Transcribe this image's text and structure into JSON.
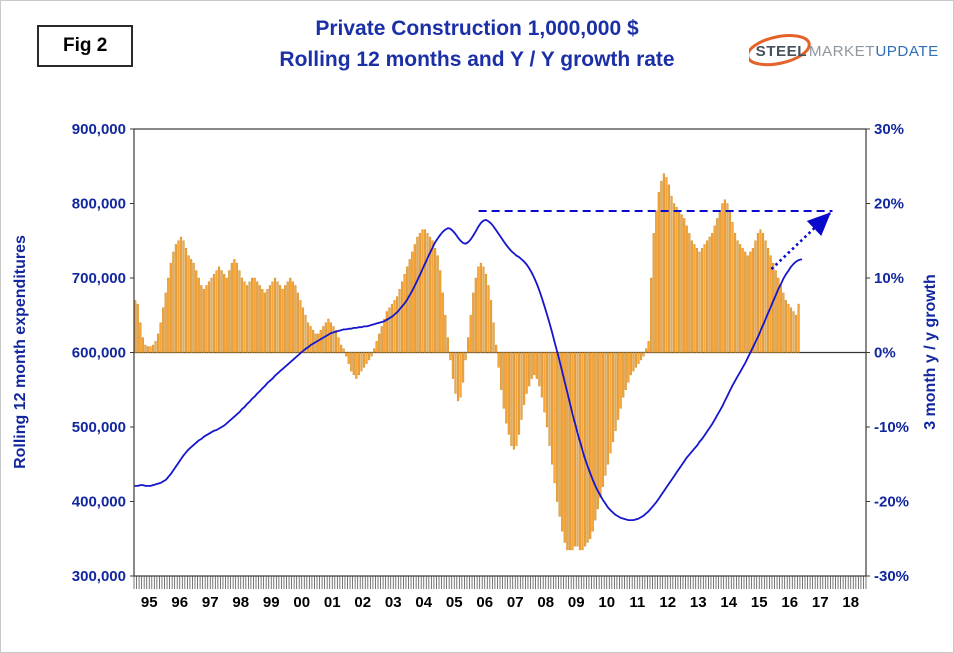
{
  "figure_label": "Fig 2",
  "logo": {
    "steel": "STEEL",
    "market": "MARKET",
    "update": "UPDATE"
  },
  "colors": {
    "title": "#1B2FA6",
    "axis_text": "#12279E",
    "bar_fill": "#F6A63C",
    "bar_stroke": "#C9861F",
    "line": "#1616CF",
    "annotation": "#0A0ACC",
    "plot_border": "#3A3A3A",
    "year_text": "#000000",
    "logo_steel": "#46515C",
    "logo_market": "#8D979F",
    "logo_update": "#2F6FB5",
    "logo_swoosh": "#E4632B"
  },
  "chart_data": {
    "type": "combo (bar + line)",
    "title": "Private Construction 1,000,000 $",
    "subtitle": "Rolling 12 months and Y / Y growth rate",
    "grid": "none",
    "legend": "none",
    "x_axis": {
      "start_year": 1995,
      "months_per_year": 12,
      "years": [
        "95",
        "96",
        "97",
        "98",
        "99",
        "00",
        "01",
        "02",
        "03",
        "04",
        "05",
        "06",
        "07",
        "08",
        "09",
        "10",
        "11",
        "12",
        "13",
        "14",
        "15",
        "16",
        "17",
        "18"
      ]
    },
    "left_axis": {
      "title": "Rolling 12 month expenditures",
      "min": 300000,
      "max": 900000,
      "tick_labels": [
        "900,000",
        "800,000",
        "700,000",
        "600,000",
        "500,000",
        "400,000",
        "300,000"
      ]
    },
    "right_axis": {
      "title": "3 month y / y growth",
      "min": -30,
      "max": 30,
      "tick_labels": [
        "30%",
        "20%",
        "10%",
        "0%",
        "-10%",
        "-20%",
        "-30%"
      ]
    },
    "bar_series": {
      "name": "3 month y/y growth (%, right axis)",
      "start": "1995-01",
      "monthly_values_pct": [
        7,
        6.5,
        4,
        2,
        1,
        0.8,
        0.8,
        1,
        1.5,
        2.5,
        4,
        6,
        8,
        10,
        12,
        13.5,
        14.5,
        15,
        15.5,
        15,
        14,
        13,
        12.5,
        12,
        11,
        10,
        9,
        8.5,
        9,
        9.5,
        10,
        10.5,
        11,
        11.5,
        11,
        10.5,
        10,
        11,
        12,
        12.5,
        12,
        11,
        10,
        9.5,
        9,
        9.5,
        10,
        10,
        9.5,
        9,
        8.5,
        8,
        8.5,
        9,
        9.5,
        10,
        9.5,
        9,
        8.5,
        9,
        9.5,
        10,
        9.5,
        9,
        8,
        7,
        6,
        5,
        4,
        3.5,
        3,
        2.5,
        2.5,
        3,
        3.5,
        4,
        4.5,
        4,
        3.5,
        3,
        2,
        1,
        0.5,
        -0.5,
        -1.5,
        -2.5,
        -3,
        -3.5,
        -3,
        -2.5,
        -2,
        -1.5,
        -1,
        -0.5,
        0.5,
        1.5,
        2.5,
        3.5,
        4.5,
        5.5,
        6,
        6.5,
        7,
        7.5,
        8.5,
        9.5,
        10.5,
        11.5,
        12.5,
        13.5,
        14.5,
        15.5,
        16,
        16.5,
        16.5,
        16,
        15.5,
        15,
        14,
        13,
        11,
        8,
        5,
        2,
        -1,
        -3.5,
        -5.5,
        -6.5,
        -6,
        -4,
        -1,
        2,
        5,
        8,
        10,
        11.5,
        12,
        11.5,
        10.5,
        9,
        7,
        4,
        1,
        -2,
        -5,
        -7.5,
        -9.5,
        -11,
        -12.5,
        -13,
        -12.5,
        -11,
        -9,
        -7,
        -5.5,
        -4.5,
        -3.5,
        -3,
        -3.5,
        -4.5,
        -6,
        -8,
        -10,
        -12.5,
        -15,
        -17.5,
        -20,
        -22,
        -24,
        -25.5,
        -26.5,
        -26.5,
        -26.5,
        -26,
        -26,
        -26.5,
        -26.5,
        -26,
        -25.5,
        -25,
        -24,
        -22.5,
        -21,
        -19.5,
        -18,
        -16.5,
        -15,
        -13.5,
        -12,
        -10.5,
        -9,
        -7.5,
        -6,
        -5,
        -4,
        -3,
        -2.5,
        -2,
        -1.5,
        -1,
        -0.5,
        0.5,
        1.5,
        10,
        16,
        19,
        21.5,
        23,
        24,
        23.5,
        22.5,
        21,
        20,
        19.5,
        19,
        18.5,
        18,
        17,
        16,
        15,
        14.5,
        14,
        13.5,
        14,
        14.5,
        15,
        15.5,
        16,
        17,
        18,
        19,
        20,
        20.5,
        20,
        19,
        17.5,
        16,
        15,
        14.5,
        14,
        13.5,
        13,
        13.5,
        14,
        15,
        16,
        16.5,
        16,
        15,
        14,
        13,
        12,
        11,
        10,
        9,
        8,
        7,
        6.5,
        6,
        5.5,
        5,
        6.5
      ]
    },
    "line_series": {
      "name": "Rolling 12 month expenditures (left axis)",
      "start": "1995-01",
      "scale_note": "values x 1000 = left axis units",
      "monthly_values_thousands": [
        421,
        421,
        422,
        422,
        421,
        421,
        421,
        422,
        423,
        424,
        425,
        427,
        429,
        433,
        437,
        442,
        447,
        452,
        457,
        462,
        466,
        470,
        473,
        476,
        479,
        482,
        484,
        487,
        489,
        491,
        493,
        495,
        496,
        498,
        500,
        502,
        505,
        508,
        511,
        514,
        517,
        520,
        524,
        527,
        531,
        534,
        538,
        541,
        545,
        548,
        552,
        555,
        559,
        562,
        565,
        569,
        572,
        575,
        578,
        581,
        584,
        587,
        590,
        593,
        596,
        599,
        602,
        605,
        607,
        610,
        612,
        614,
        616,
        618,
        620,
        622,
        624,
        626,
        627,
        628,
        629,
        630,
        631,
        631,
        632,
        632,
        633,
        633,
        634,
        634,
        635,
        635,
        636,
        637,
        638,
        639,
        640,
        641,
        642,
        644,
        646,
        648,
        651,
        654,
        658,
        662,
        666,
        671,
        677,
        683,
        690,
        697,
        704,
        712,
        719,
        727,
        734,
        741,
        748,
        753,
        758,
        762,
        765,
        767,
        766,
        763,
        759,
        754,
        750,
        747,
        746,
        748,
        752,
        757,
        763,
        769,
        774,
        777,
        778,
        776,
        773,
        769,
        764,
        759,
        754,
        749,
        744,
        740,
        736,
        733,
        730,
        728,
        725,
        722,
        718,
        713,
        707,
        700,
        692,
        683,
        673,
        662,
        651,
        639,
        627,
        614,
        601,
        588,
        574,
        560,
        546,
        532,
        518,
        505,
        492,
        480,
        468,
        457,
        447,
        438,
        429,
        421,
        414,
        408,
        402,
        397,
        392,
        388,
        385,
        382,
        380,
        378,
        377,
        376,
        375,
        375,
        375,
        376,
        377,
        379,
        381,
        384,
        387,
        391,
        395,
        399,
        404,
        409,
        414,
        419,
        424,
        429,
        434,
        439,
        444,
        449,
        454,
        459,
        463,
        467,
        471,
        475,
        480,
        484,
        489,
        494,
        499,
        504,
        510,
        516,
        522,
        528,
        535,
        542,
        549,
        556,
        562,
        568,
        574,
        580,
        586,
        593,
        600,
        607,
        614,
        621,
        629,
        637,
        645,
        653,
        661,
        669,
        677,
        685,
        692,
        699,
        705,
        710,
        715,
        719,
        722,
        724,
        725
      ]
    },
    "annotations": {
      "dashed_target_line": {
        "pct": 19,
        "from_year": 2006.3,
        "to_year": 2017.9
      },
      "dotted_arrow": {
        "from": {
          "year": 2015.9,
          "pct": 11.2
        },
        "to": {
          "year": 2017.82,
          "pct": 18.7
        }
      }
    }
  }
}
